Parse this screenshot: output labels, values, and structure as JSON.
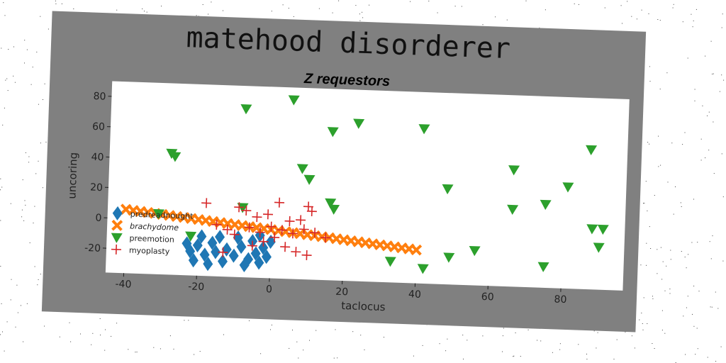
{
  "chart_data": {
    "type": "scatter",
    "title": "matehood disorderer",
    "subtitle": "Z requestors",
    "xlabel": "taclocus",
    "ylabel": "uncoring",
    "xlim": [
      -45,
      97
    ],
    "ylim": [
      -36,
      90
    ],
    "xticks": [
      -40,
      -20,
      0,
      20,
      40,
      60,
      80
    ],
    "yticks": [
      -20,
      0,
      20,
      40,
      60,
      80
    ],
    "grid": false,
    "legend_position": "lower-left",
    "series": [
      {
        "name": "predreadnought",
        "marker": "diamond",
        "color": "#1f77b4",
        "points": [
          [
            -22,
            -20
          ],
          [
            -20,
            -16
          ],
          [
            -18,
            -22
          ],
          [
            -16,
            -14
          ],
          [
            -15,
            -20
          ],
          [
            -17,
            -28
          ],
          [
            -13,
            -26
          ],
          [
            -12,
            -18
          ],
          [
            -9,
            -10
          ],
          [
            -8,
            -16
          ],
          [
            -6,
            -24
          ],
          [
            -5,
            -12
          ],
          [
            -4,
            -20
          ],
          [
            -3,
            -8
          ],
          [
            -2,
            -16
          ],
          [
            -1,
            -22
          ],
          [
            0,
            -12
          ],
          [
            -19,
            -10
          ],
          [
            -21,
            -26
          ],
          [
            -14,
            -10
          ],
          [
            -7,
            -28
          ],
          [
            -10,
            -22
          ],
          [
            -23,
            -15
          ],
          [
            -3,
            -26
          ]
        ]
      },
      {
        "name": "brachydome",
        "marker": "x",
        "color": "#ff7f0e",
        "points": [
          [
            -40,
            6
          ],
          [
            -38,
            5.5
          ],
          [
            -36,
            5
          ],
          [
            -34,
            4.5
          ],
          [
            -32,
            4
          ],
          [
            -30,
            3.5
          ],
          [
            -28,
            3
          ],
          [
            -26,
            2.5
          ],
          [
            -24,
            2
          ],
          [
            -22,
            1.5
          ],
          [
            -20,
            1
          ],
          [
            -18,
            0.5
          ],
          [
            -16,
            0
          ],
          [
            -14,
            -0.5
          ],
          [
            -12,
            -1
          ],
          [
            -10,
            -1.5
          ],
          [
            -8,
            -2
          ],
          [
            -6,
            -2.5
          ],
          [
            -4,
            -3
          ],
          [
            -2,
            -3.5
          ],
          [
            0,
            -4
          ],
          [
            2,
            -4.5
          ],
          [
            4,
            -5
          ],
          [
            6,
            -5.5
          ],
          [
            8,
            -6
          ],
          [
            10,
            -6.5
          ],
          [
            12,
            -7
          ],
          [
            14,
            -7.5
          ],
          [
            16,
            -8
          ],
          [
            18,
            -8.5
          ],
          [
            20,
            -9
          ],
          [
            22,
            -9.5
          ],
          [
            24,
            -10
          ],
          [
            26,
            -10.5
          ],
          [
            28,
            -11
          ],
          [
            30,
            -11.5
          ],
          [
            32,
            -12
          ],
          [
            34,
            -12.5
          ],
          [
            36,
            -13
          ],
          [
            38,
            -13.5
          ],
          [
            40,
            -14
          ]
        ]
      },
      {
        "name": "preemotion",
        "marker": "triangle-down",
        "color": "#2ca02c",
        "points": [
          [
            -28,
            44
          ],
          [
            -27,
            42
          ],
          [
            -31,
            4
          ],
          [
            -8,
            75
          ],
          [
            -8,
            10
          ],
          [
            5,
            82
          ],
          [
            8,
            37
          ],
          [
            10,
            30
          ],
          [
            16,
            62
          ],
          [
            23,
            68
          ],
          [
            16,
            15
          ],
          [
            17,
            11
          ],
          [
            41,
            66
          ],
          [
            48,
            27
          ],
          [
            66,
            41
          ],
          [
            66,
            15
          ],
          [
            75,
            19
          ],
          [
            81,
            31
          ],
          [
            87,
            56
          ],
          [
            88,
            4
          ],
          [
            91,
            4
          ],
          [
            90,
            -8
          ],
          [
            33,
            -22
          ],
          [
            42,
            -26
          ],
          [
            49,
            -18
          ],
          [
            56,
            -13
          ],
          [
            75,
            -22
          ],
          [
            -22,
            -10
          ]
        ]
      },
      {
        "name": "myoplasty",
        "marker": "plus",
        "color": "#d62728",
        "points": [
          [
            -18,
            12
          ],
          [
            -9,
            10
          ],
          [
            -7,
            8
          ],
          [
            -4,
            4
          ],
          [
            -1,
            6
          ],
          [
            2,
            14
          ],
          [
            5,
            2
          ],
          [
            8,
            3
          ],
          [
            10,
            12
          ],
          [
            11,
            9
          ],
          [
            -15,
            -2
          ],
          [
            -12,
            -5
          ],
          [
            -10,
            -8
          ],
          [
            -6,
            -3
          ],
          [
            -3,
            -6
          ],
          [
            0,
            -2
          ],
          [
            3,
            -4
          ],
          [
            6,
            -6
          ],
          [
            9,
            -3
          ],
          [
            12,
            -5
          ],
          [
            15,
            -8
          ],
          [
            -2,
            -12
          ],
          [
            4,
            -15
          ],
          [
            7,
            -18
          ],
          [
            10,
            -20
          ],
          [
            -13,
            -20
          ],
          [
            -5,
            -15
          ],
          [
            1,
            -9
          ]
        ]
      }
    ]
  }
}
